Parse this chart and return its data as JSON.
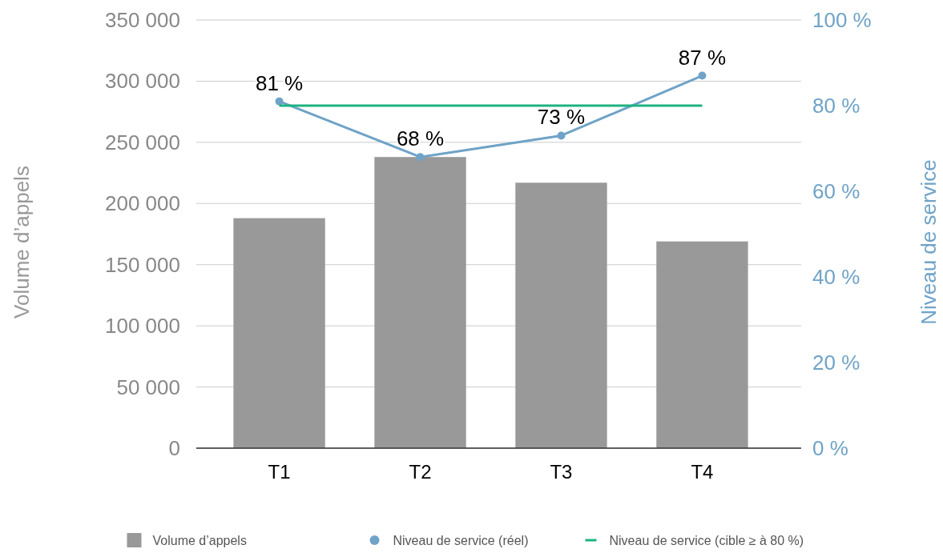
{
  "chart_data": {
    "type": "bar",
    "categories": [
      "T1",
      "T2",
      "T3",
      "T4"
    ],
    "ylabel": "Volume d’appels",
    "y2label": "Niveau de service",
    "ylim": [
      0,
      350000
    ],
    "yticks": [
      {
        "value": 0,
        "label": "0"
      },
      {
        "value": 50000,
        "label": "50 000"
      },
      {
        "value": 100000,
        "label": "100 000"
      },
      {
        "value": 150000,
        "label": "150 000"
      },
      {
        "value": 200000,
        "label": "200 000"
      },
      {
        "value": 250000,
        "label": "250 000"
      },
      {
        "value": 300000,
        "label": "300 000"
      },
      {
        "value": 350000,
        "label": "350 000"
      }
    ],
    "y2lim": [
      0,
      100
    ],
    "y2ticks": [
      {
        "value": 0,
        "label": "0 %"
      },
      {
        "value": 20,
        "label": "20 %"
      },
      {
        "value": 40,
        "label": "40 %"
      },
      {
        "value": 60,
        "label": "60 %"
      },
      {
        "value": 80,
        "label": "80 %"
      },
      {
        "value": 100,
        "label": "100 %"
      }
    ],
    "grid": "y",
    "legend": "bottom",
    "series": [
      {
        "name": "Volume d’appels",
        "color": "#999999",
        "values": [
          188000,
          238000,
          217000,
          169000
        ]
      },
      {
        "name": "Niveau de service (réel)",
        "type": "line",
        "axis": "y2",
        "color": "#6fa3c7",
        "marker": "circle",
        "values": [
          81,
          68,
          73,
          87
        ],
        "value_labels": [
          "81 %",
          "68 %",
          "73 %",
          "87 %"
        ]
      },
      {
        "name": "Niveau de service (cible ≥ à 80 %)",
        "type": "line",
        "axis": "y2",
        "color": "#1db381",
        "marker": "none",
        "values": [
          80,
          80,
          80,
          80
        ]
      }
    ]
  }
}
